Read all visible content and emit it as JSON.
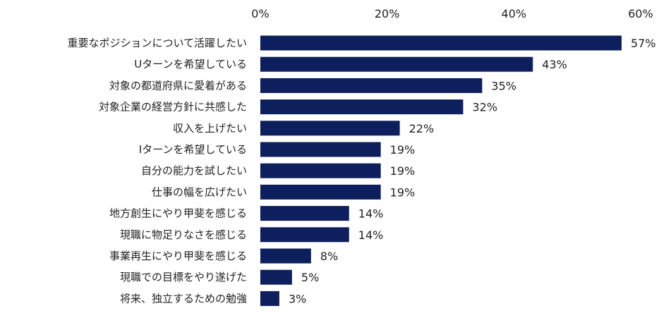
{
  "chart_data": {
    "type": "bar",
    "orientation": "horizontal",
    "title": "",
    "xlabel": "",
    "ylabel": "",
    "xlim": [
      0,
      60
    ],
    "x_ticks": [
      0,
      20,
      40,
      60
    ],
    "x_tick_labels": [
      "0%",
      "20%",
      "40%",
      "60%"
    ],
    "x_axis_position": "top",
    "grid": false,
    "legend": "none",
    "bar_color": "#0d1f5c",
    "categories": [
      "重要なポジションについて活躍したい",
      "Uターンを希望している",
      "対象の都道府県に愛着がある",
      "対象企業の経営方針に共感した",
      "収入を上げたい",
      "Iターンを希望している",
      "自分の能力を試したい",
      "仕事の幅を広げたい",
      "地方創生にやり甲斐を感じる",
      "現職に物足りなさを感じる",
      "事業再生にやり甲斐を感じる",
      "現職での目標をやり遂げた",
      "将来、独立するための勉強"
    ],
    "values": [
      57,
      43,
      35,
      32,
      22,
      19,
      19,
      19,
      14,
      14,
      8,
      5,
      3
    ],
    "value_labels": [
      "57%",
      "43%",
      "35%",
      "32%",
      "22%",
      "19%",
      "19%",
      "19%",
      "14%",
      "14%",
      "8%",
      "5%",
      "3%"
    ]
  }
}
